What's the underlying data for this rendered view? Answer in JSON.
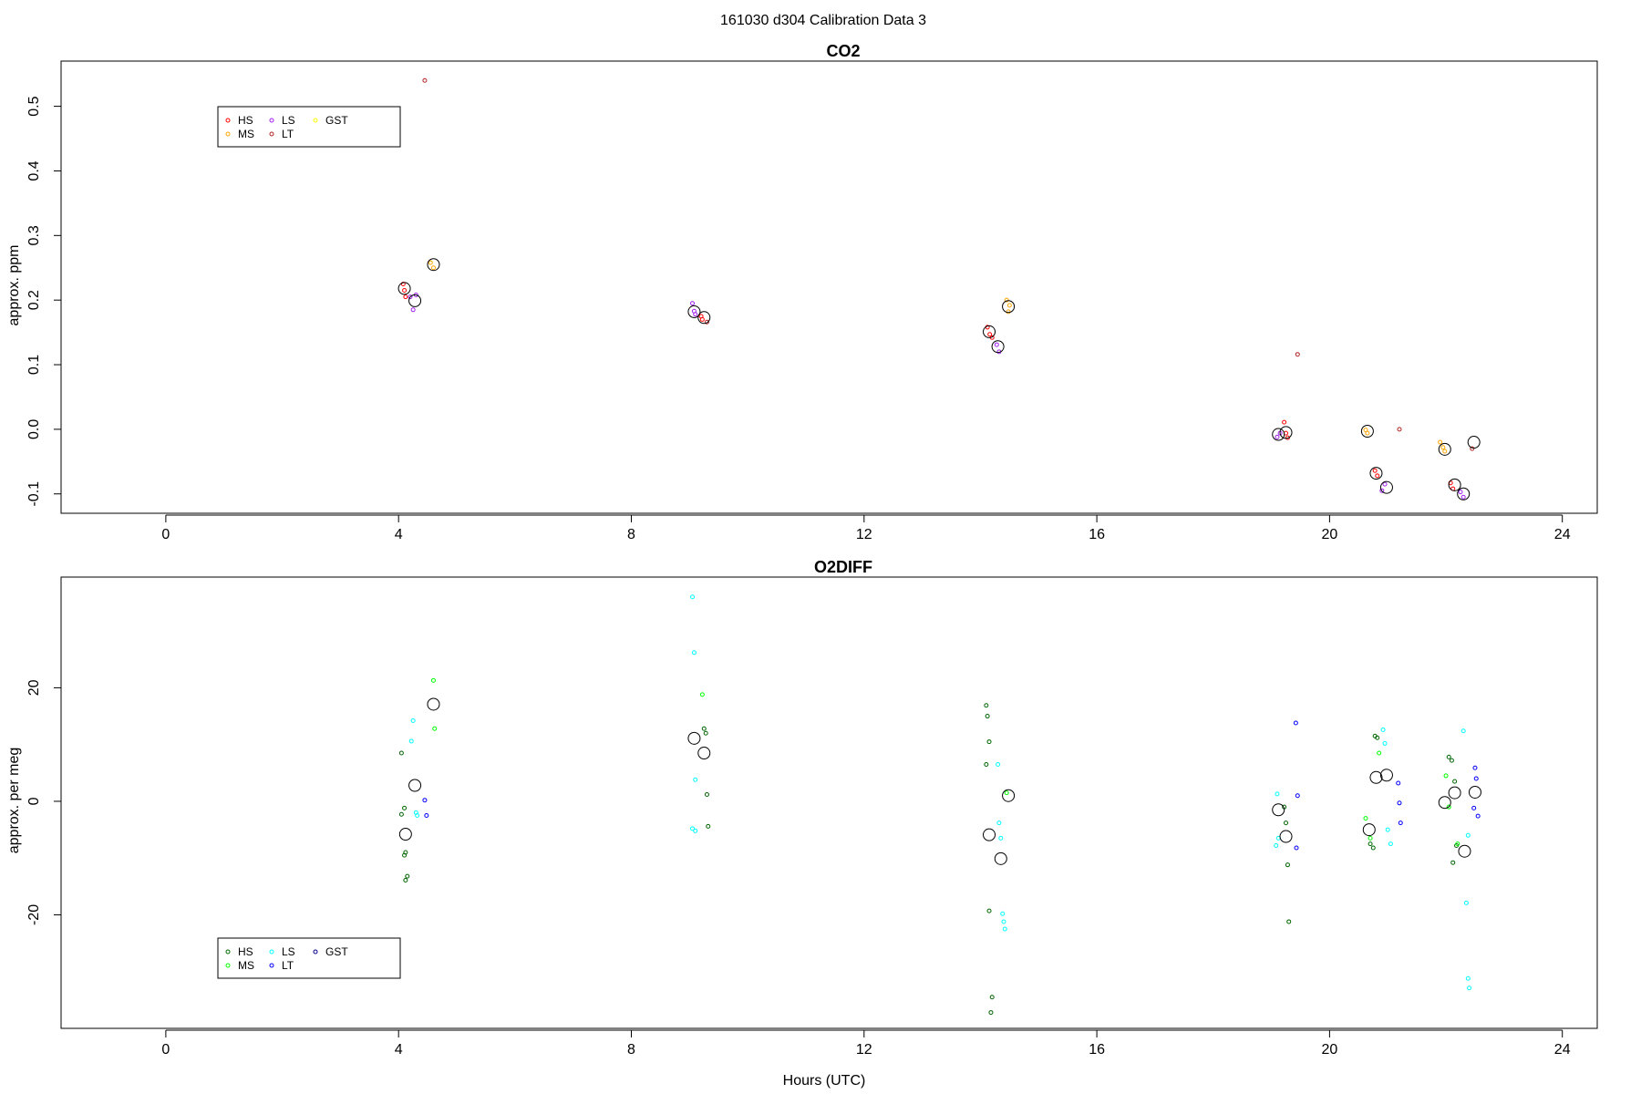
{
  "figure": {
    "title": "161030   d304   Calibration Data 3"
  },
  "colors": {
    "co2": {
      "HS": "#ff0000",
      "MS": "#ffa500",
      "LS": "#a020f0",
      "LT": "#b22222",
      "GST": "#ffff00"
    },
    "o2": {
      "HS": "#006400",
      "MS": "#00ff00",
      "LS": "#00ffff",
      "LT": "#0000ff",
      "GST": "#00008b"
    },
    "mean": "#000000",
    "axis": "#000000"
  },
  "chart_data": [
    {
      "id": "co2",
      "type": "scatter",
      "title": "CO2",
      "xlabel": "",
      "ylabel": "approx. ppm",
      "xlim": [
        -1.8,
        24.6
      ],
      "ylim": [
        -0.13,
        0.57
      ],
      "x_ticks": [
        0,
        4,
        8,
        12,
        16,
        20,
        24
      ],
      "y_ticks": [
        -0.1,
        0.0,
        0.1,
        0.2,
        0.3,
        0.4,
        0.5
      ],
      "y_tick_labels": [
        "-0.1",
        "0.0",
        "0.1",
        "0.2",
        "0.3",
        "0.4",
        "0.5"
      ],
      "legend": {
        "placement": "top-left",
        "entries": [
          "HS",
          "MS",
          "LS",
          "LT",
          "GST"
        ]
      },
      "series": [
        {
          "name": "HS",
          "points": [
            [
              4.08,
              0.225
            ],
            [
              4.1,
              0.215
            ],
            [
              4.12,
              0.205
            ],
            [
              9.2,
              0.175
            ],
            [
              9.22,
              0.17
            ],
            [
              14.12,
              0.158
            ],
            [
              14.16,
              0.147
            ],
            [
              14.2,
              0.142
            ],
            [
              19.22,
              0.011
            ],
            [
              19.25,
              -0.006
            ],
            [
              19.28,
              -0.013
            ],
            [
              20.78,
              -0.064
            ],
            [
              20.82,
              -0.072
            ],
            [
              22.08,
              -0.083
            ],
            [
              22.12,
              -0.092
            ]
          ]
        },
        {
          "name": "MS",
          "points": [
            [
              4.55,
              0.258
            ],
            [
              4.6,
              0.25
            ],
            [
              14.45,
              0.2
            ],
            [
              14.48,
              0.182
            ],
            [
              14.5,
              0.192
            ],
            [
              20.62,
              -0.001
            ],
            [
              20.65,
              -0.006
            ],
            [
              21.95,
              -0.028
            ],
            [
              21.98,
              -0.034
            ],
            [
              21.9,
              -0.02
            ]
          ]
        },
        {
          "name": "LS",
          "points": [
            [
              4.2,
              0.205
            ],
            [
              4.25,
              0.185
            ],
            [
              4.3,
              0.208
            ],
            [
              9.05,
              0.195
            ],
            [
              9.08,
              0.183
            ],
            [
              9.1,
              0.178
            ],
            [
              14.28,
              0.131
            ],
            [
              14.32,
              0.12
            ],
            [
              19.1,
              -0.012
            ],
            [
              19.15,
              -0.006
            ],
            [
              20.9,
              -0.095
            ],
            [
              20.95,
              -0.085
            ],
            [
              22.25,
              -0.097
            ],
            [
              22.3,
              -0.105
            ]
          ]
        },
        {
          "name": "LT",
          "points": [
            [
              4.45,
              0.54
            ],
            [
              19.45,
              0.116
            ],
            [
              21.2,
              0.0
            ],
            [
              22.45,
              -0.03
            ],
            [
              9.3,
              0.166
            ]
          ]
        },
        {
          "name": "GST",
          "points": []
        }
      ],
      "means": [
        [
          4.1,
          0.218
        ],
        [
          4.28,
          0.199
        ],
        [
          4.6,
          0.255
        ],
        [
          9.08,
          0.182
        ],
        [
          9.25,
          0.173
        ],
        [
          14.15,
          0.151
        ],
        [
          14.3,
          0.128
        ],
        [
          14.48,
          0.19
        ],
        [
          19.12,
          -0.008
        ],
        [
          19.25,
          -0.005
        ],
        [
          20.65,
          -0.003
        ],
        [
          20.8,
          -0.068
        ],
        [
          20.98,
          -0.09
        ],
        [
          21.98,
          -0.031
        ],
        [
          22.15,
          -0.086
        ],
        [
          22.3,
          -0.1
        ],
        [
          22.48,
          -0.02
        ]
      ]
    },
    {
      "id": "o2diff",
      "type": "scatter",
      "title": "O2DIFF",
      "xlabel": "Hours (UTC)",
      "ylabel": "approx. per meg",
      "xlim": [
        -1.8,
        24.6
      ],
      "ylim": [
        -40,
        39.5
      ],
      "x_ticks": [
        0,
        4,
        8,
        12,
        16,
        20,
        24
      ],
      "y_ticks": [
        -20,
        0,
        20
      ],
      "y_tick_labels": [
        "-20",
        "0",
        "20"
      ],
      "legend": {
        "placement": "bottom-left",
        "entries": [
          "HS",
          "MS",
          "LS",
          "LT",
          "GST"
        ]
      },
      "series": [
        {
          "name": "HS",
          "points": [
            [
              4.05,
              8.5
            ],
            [
              4.1,
              -1.2
            ],
            [
              4.05,
              -2.3
            ],
            [
              4.12,
              -9.0
            ],
            [
              4.1,
              -9.5
            ],
            [
              4.15,
              -13.2
            ],
            [
              4.12,
              -13.9
            ],
            [
              9.25,
              12.8
            ],
            [
              9.28,
              12.0
            ],
            [
              9.3,
              1.2
            ],
            [
              9.32,
              -4.4
            ],
            [
              14.1,
              16.9
            ],
            [
              14.12,
              15.0
            ],
            [
              14.15,
              10.5
            ],
            [
              14.1,
              6.5
            ],
            [
              14.15,
              -19.3
            ],
            [
              14.2,
              -34.5
            ],
            [
              14.18,
              -37.2
            ],
            [
              19.22,
              -1.0
            ],
            [
              19.25,
              -3.8
            ],
            [
              19.28,
              -11.2
            ],
            [
              19.3,
              -21.2
            ],
            [
              20.7,
              -7.5
            ],
            [
              20.75,
              -8.2
            ],
            [
              20.78,
              11.5
            ],
            [
              20.82,
              11.2
            ],
            [
              22.05,
              7.8
            ],
            [
              22.1,
              7.2
            ],
            [
              22.15,
              3.5
            ],
            [
              22.18,
              -7.8
            ],
            [
              22.12,
              -10.8
            ]
          ]
        },
        {
          "name": "MS",
          "points": [
            [
              4.6,
              21.3
            ],
            [
              4.62,
              12.8
            ],
            [
              9.22,
              18.8
            ],
            [
              14.45,
              1.5
            ],
            [
              20.62,
              -3.0
            ],
            [
              20.7,
              -6.5
            ],
            [
              20.85,
              8.5
            ],
            [
              22.0,
              4.5
            ],
            [
              22.05,
              -1.0
            ],
            [
              22.2,
              -7.5
            ]
          ]
        },
        {
          "name": "LS",
          "points": [
            [
              4.25,
              14.2
            ],
            [
              4.22,
              10.6
            ],
            [
              4.3,
              -2.0
            ],
            [
              4.32,
              -2.5
            ],
            [
              9.05,
              36.0
            ],
            [
              9.08,
              26.2
            ],
            [
              9.1,
              3.8
            ],
            [
              9.05,
              -4.8
            ],
            [
              9.1,
              -5.2
            ],
            [
              14.3,
              6.5
            ],
            [
              14.32,
              -3.8
            ],
            [
              14.35,
              -6.5
            ],
            [
              14.38,
              -19.8
            ],
            [
              14.4,
              -21.2
            ],
            [
              14.42,
              -22.5
            ],
            [
              19.1,
              1.3
            ],
            [
              19.12,
              -6.5
            ],
            [
              19.08,
              -7.8
            ],
            [
              20.92,
              12.6
            ],
            [
              20.95,
              10.2
            ],
            [
              21.0,
              -5.0
            ],
            [
              21.05,
              -7.5
            ],
            [
              22.3,
              12.4
            ],
            [
              22.35,
              -17.9
            ],
            [
              22.38,
              -31.2
            ],
            [
              22.4,
              -32.9
            ],
            [
              22.38,
              -6.0
            ]
          ]
        },
        {
          "name": "LT",
          "points": [
            [
              4.45,
              0.2
            ],
            [
              4.48,
              -2.5
            ],
            [
              19.42,
              13.8
            ],
            [
              19.45,
              1.0
            ],
            [
              19.43,
              -8.2
            ],
            [
              21.18,
              3.2
            ],
            [
              21.2,
              -0.3
            ],
            [
              21.22,
              -3.8
            ],
            [
              22.5,
              5.9
            ],
            [
              22.52,
              4.0
            ],
            [
              22.48,
              -1.2
            ],
            [
              22.55,
              -2.6
            ]
          ]
        },
        {
          "name": "GST",
          "points": []
        }
      ],
      "means": [
        [
          4.12,
          -5.8
        ],
        [
          4.28,
          2.8
        ],
        [
          4.6,
          17.1
        ],
        [
          9.08,
          11.1
        ],
        [
          9.25,
          8.5
        ],
        [
          14.15,
          -5.9
        ],
        [
          14.35,
          -10.1
        ],
        [
          14.48,
          1.0
        ],
        [
          19.12,
          -1.5
        ],
        [
          19.25,
          -6.2
        ],
        [
          20.68,
          -5.0
        ],
        [
          20.8,
          4.2
        ],
        [
          20.98,
          4.6
        ],
        [
          21.98,
          -0.2
        ],
        [
          22.15,
          1.5
        ],
        [
          22.32,
          -8.8
        ],
        [
          22.5,
          1.6
        ]
      ]
    }
  ]
}
